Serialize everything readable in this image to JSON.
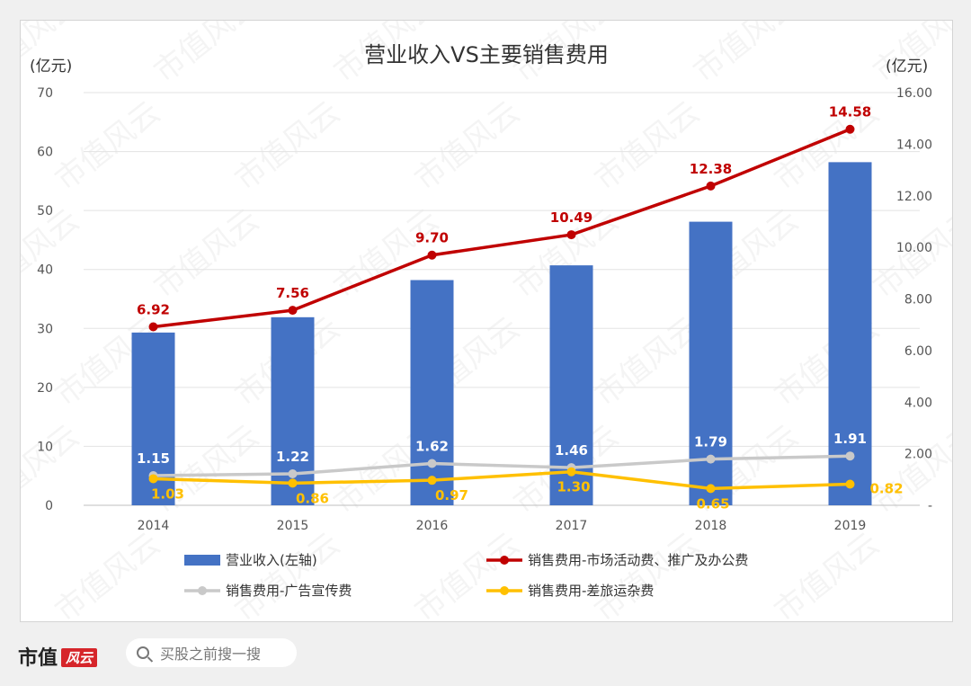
{
  "chart_data": {
    "type": "bar",
    "title": "营业收入VS主要销售费用",
    "left_unit": "(亿元)",
    "right_unit": "(亿元)",
    "categories": [
      "2014",
      "2015",
      "2016",
      "2017",
      "2018",
      "2019"
    ],
    "left_axis": {
      "min": 0,
      "max": 70,
      "ticks": [
        "0",
        "10",
        "20",
        "30",
        "40",
        "50",
        "60",
        "70"
      ]
    },
    "right_axis": {
      "min": 0,
      "max": 16,
      "ticks": [
        "-",
        "2.00",
        "4.00",
        "6.00",
        "8.00",
        "10.00",
        "12.00",
        "14.00",
        "16.00"
      ]
    },
    "grid": true,
    "legend_position": "bottom",
    "series": [
      {
        "name": "营业收入(左轴)",
        "type": "bar",
        "axis": "left",
        "color": "#4472c4",
        "values": [
          29.3,
          31.9,
          38.2,
          40.7,
          48.1,
          58.2
        ]
      },
      {
        "name": "销售费用-市场活动费、推广及办公费",
        "type": "line",
        "axis": "right",
        "color": "#c00000",
        "values": [
          6.92,
          7.56,
          9.7,
          10.49,
          12.38,
          14.58
        ],
        "labels": [
          "6.92",
          "7.56",
          "9.70",
          "10.49",
          "12.38",
          "14.58"
        ]
      },
      {
        "name": "销售费用-广告宣传费",
        "type": "line",
        "axis": "right",
        "color": "#c9c9c9",
        "label_color": "#ffffff",
        "values": [
          1.15,
          1.22,
          1.62,
          1.46,
          1.79,
          1.91
        ],
        "labels": [
          "1.15",
          "1.22",
          "1.62",
          "1.46",
          "1.79",
          "1.91"
        ]
      },
      {
        "name": "销售费用-差旅运杂费",
        "type": "line",
        "axis": "right",
        "color": "#ffc000",
        "values": [
          1.03,
          0.86,
          0.97,
          1.3,
          0.65,
          0.82
        ],
        "labels": [
          "1.03",
          "0.86",
          "0.97",
          "1.30",
          "0.65",
          "0.82"
        ]
      }
    ]
  },
  "watermark": "市值风云",
  "footer": {
    "brand": "市值",
    "brand_mark": "风云",
    "search_placeholder": "买股之前搜一搜"
  }
}
